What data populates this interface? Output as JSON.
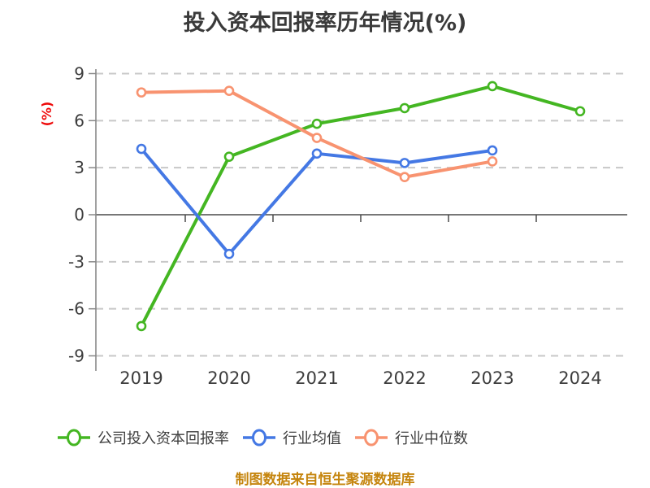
{
  "title": "投入资本回报率历年情况(%)",
  "caption": "制图数据来自恒生聚源数据库",
  "colors": {
    "title_text": "#3a3a3a",
    "axis_line": "#888888",
    "tick_label": "#3d3d3d",
    "grid_dashed": "#c8c8c8",
    "zero_line": "#4a4a4a",
    "y_unit_label": "#ee0a0a",
    "caption_text": "#c5850e",
    "marker_fill": "#ffffff"
  },
  "chart_data": {
    "type": "line",
    "title": "投入资本回报率历年情况(%)",
    "xlabel": "",
    "ylabel": "(%)",
    "categories": [
      "2019",
      "2020",
      "2021",
      "2022",
      "2023",
      "2024"
    ],
    "series": [
      {
        "name": "公司投入资本回报率",
        "color": "#44b622",
        "values": [
          -7.1,
          3.7,
          5.8,
          6.8,
          8.2,
          6.6
        ]
      },
      {
        "name": "行业均值",
        "color": "#4478e4",
        "values": [
          4.2,
          -2.5,
          3.9,
          3.3,
          4.1,
          null
        ]
      },
      {
        "name": "行业中位数",
        "color": "#f89370",
        "values": [
          7.8,
          7.9,
          4.9,
          2.4,
          3.4,
          null
        ]
      }
    ],
    "yticks": [
      9,
      6,
      3,
      0,
      -3,
      -6,
      -9
    ],
    "ylim": [
      -9,
      9
    ],
    "grid": "dashed horizontal gridlines, solid line at zero",
    "legend_position": "bottom"
  }
}
